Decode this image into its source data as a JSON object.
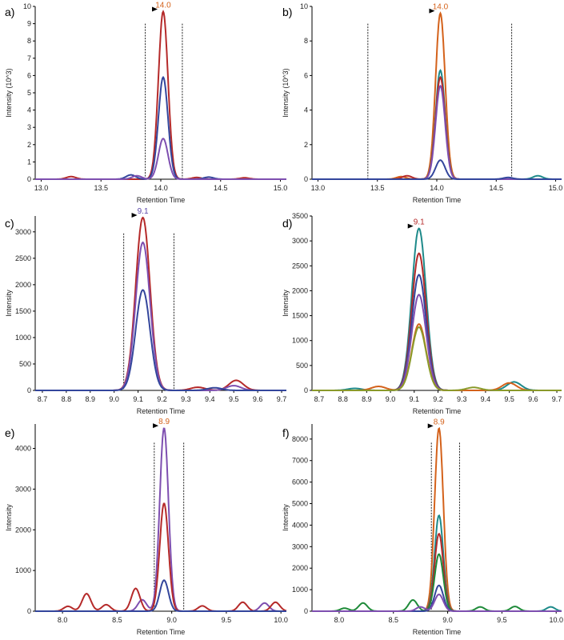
{
  "figure": {
    "panels": [
      {
        "label": "a)",
        "xlabel": "Retention Time",
        "ylabel": "Intensity (10^3)",
        "xlim": [
          12.95,
          15.05
        ],
        "ylim": [
          0,
          10
        ],
        "xticks": [
          "13.0",
          "13.5",
          "14.0",
          "14.5",
          "15.0"
        ],
        "yticks": [
          "0",
          "1",
          "2",
          "3",
          "4",
          "5",
          "6",
          "7",
          "8",
          "9",
          "10"
        ],
        "peak_label": "14.0",
        "peak_label_color": "#d4621b",
        "peak_rt": 14.02,
        "boundaries": [
          13.87,
          14.18
        ]
      },
      {
        "label": "b)",
        "xlabel": "Retention Time",
        "ylabel": "Intensity (10^3)",
        "xlim": [
          12.95,
          15.05
        ],
        "ylim": [
          0,
          10
        ],
        "xticks": [
          "13.0",
          "13.5",
          "14.0",
          "14.5",
          "15.0"
        ],
        "yticks": [
          "0",
          "2",
          "4",
          "6",
          "8",
          "10"
        ],
        "peak_label": "14.0",
        "peak_label_color": "#d4621b",
        "peak_rt": 14.03,
        "boundaries": [
          13.42,
          14.63
        ]
      },
      {
        "label": "c)",
        "xlabel": "Retention Time",
        "ylabel": "Intensity",
        "xlim": [
          8.67,
          9.72
        ],
        "ylim": [
          0,
          3300
        ],
        "xticks": [
          "8.7",
          "8.8",
          "8.9",
          "9.0",
          "9.1",
          "9.2",
          "9.3",
          "9.4",
          "9.5",
          "9.6",
          "9.7"
        ],
        "yticks": [
          "0",
          "500",
          "1000",
          "1500",
          "2000",
          "2500",
          "3000"
        ],
        "peak_label": "9.1",
        "peak_label_color": "#5a45a8",
        "peak_rt": 9.12,
        "boundaries": [
          9.04,
          9.25
        ]
      },
      {
        "label": "d)",
        "xlabel": "Retention Time",
        "ylabel": "Intensity",
        "xlim": [
          8.67,
          9.72
        ],
        "ylim": [
          0,
          3500
        ],
        "xticks": [
          "8.7",
          "8.8",
          "8.9",
          "9.0",
          "9.1",
          "9.2",
          "9.3",
          "9.4",
          "9.5",
          "9.6",
          "9.7"
        ],
        "yticks": [
          "0",
          "500",
          "1000",
          "1500",
          "2000",
          "2500",
          "3000",
          "3500"
        ],
        "peak_label": "9.1",
        "peak_label_color": "#b52a2a",
        "peak_rt": 9.12,
        "boundaries": []
      },
      {
        "label": "e)",
        "xlabel": "Retention Time",
        "ylabel": "Intensity",
        "xlim": [
          7.75,
          10.05
        ],
        "ylim": [
          0,
          4600
        ],
        "xticks": [
          "8.0",
          "8.5",
          "9.0",
          "9.5",
          "10.0"
        ],
        "yticks": [
          "0",
          "1000",
          "2000",
          "3000",
          "4000"
        ],
        "peak_label": "8.9",
        "peak_label_color": "#d4621b",
        "peak_rt": 8.93,
        "boundaries": [
          8.84,
          9.11
        ]
      },
      {
        "label": "f)",
        "xlabel": "Retention Time",
        "ylabel": "Intensity",
        "xlim": [
          7.75,
          10.05
        ],
        "ylim": [
          0,
          8700
        ],
        "xticks": [
          "8.0",
          "8.5",
          "9.0",
          "9.5",
          "10.0"
        ],
        "yticks": [
          "0",
          "1000",
          "2000",
          "3000",
          "4000",
          "5000",
          "6000",
          "7000",
          "8000"
        ],
        "peak_label": "8.9",
        "peak_label_color": "#d4621b",
        "peak_rt": 8.92,
        "boundaries": [
          8.85,
          9.11
        ]
      }
    ]
  },
  "chart_data": [
    {
      "type": "line",
      "panel": "a)",
      "x_unit": "min",
      "series": [
        {
          "color": "#b52a2a",
          "peaks": [
            {
              "rt": 14.02,
              "height": 9.7,
              "width": 0.04
            },
            {
              "rt": 13.25,
              "height": 0.15,
              "width": 0.04
            },
            {
              "rt": 14.3,
              "height": 0.1,
              "width": 0.04
            },
            {
              "rt": 14.7,
              "height": 0.08,
              "width": 0.04
            }
          ]
        },
        {
          "color": "#33469c",
          "peaks": [
            {
              "rt": 14.02,
              "height": 5.9,
              "width": 0.04
            },
            {
              "rt": 13.75,
              "height": 0.25,
              "width": 0.04
            },
            {
              "rt": 14.4,
              "height": 0.12,
              "width": 0.04
            }
          ]
        },
        {
          "color": "#7e4fb0",
          "peaks": [
            {
              "rt": 14.02,
              "height": 2.35,
              "width": 0.04
            },
            {
              "rt": 13.8,
              "height": 0.2,
              "width": 0.04
            }
          ]
        }
      ]
    },
    {
      "type": "line",
      "panel": "b)",
      "x_unit": "min",
      "series": [
        {
          "color": "#d4621b",
          "peaks": [
            {
              "rt": 14.03,
              "height": 9.6,
              "width": 0.04
            },
            {
              "rt": 13.7,
              "height": 0.15,
              "width": 0.04
            }
          ]
        },
        {
          "color": "#1e8a8a",
          "peaks": [
            {
              "rt": 14.03,
              "height": 6.3,
              "width": 0.04
            },
            {
              "rt": 14.85,
              "height": 0.2,
              "width": 0.04
            }
          ]
        },
        {
          "color": "#b52a2a",
          "peaks": [
            {
              "rt": 14.03,
              "height": 5.9,
              "width": 0.04
            },
            {
              "rt": 13.75,
              "height": 0.2,
              "width": 0.04
            }
          ]
        },
        {
          "color": "#7e4fb0",
          "peaks": [
            {
              "rt": 14.03,
              "height": 5.4,
              "width": 0.04
            }
          ]
        },
        {
          "color": "#33469c",
          "peaks": [
            {
              "rt": 14.03,
              "height": 1.1,
              "width": 0.04
            },
            {
              "rt": 14.6,
              "height": 0.1,
              "width": 0.04
            }
          ]
        }
      ]
    },
    {
      "type": "line",
      "panel": "c)",
      "x_unit": "min",
      "series": [
        {
          "color": "#b52a2a",
          "peaks": [
            {
              "rt": 9.12,
              "height": 3270,
              "width": 0.03
            },
            {
              "rt": 9.51,
              "height": 190,
              "width": 0.03
            },
            {
              "rt": 9.35,
              "height": 60,
              "width": 0.03
            }
          ]
        },
        {
          "color": "#7e4fb0",
          "peaks": [
            {
              "rt": 9.12,
              "height": 2800,
              "width": 0.03
            },
            {
              "rt": 9.5,
              "height": 90,
              "width": 0.03
            }
          ]
        },
        {
          "color": "#33469c",
          "peaks": [
            {
              "rt": 9.12,
              "height": 1900,
              "width": 0.03
            },
            {
              "rt": 9.42,
              "height": 50,
              "width": 0.03
            }
          ]
        }
      ]
    },
    {
      "type": "line",
      "panel": "d)",
      "x_unit": "min",
      "series": [
        {
          "color": "#1e8a8a",
          "peaks": [
            {
              "rt": 9.12,
              "height": 3250,
              "width": 0.03
            },
            {
              "rt": 9.52,
              "height": 170,
              "width": 0.03
            },
            {
              "rt": 8.85,
              "height": 40,
              "width": 0.03
            }
          ]
        },
        {
          "color": "#b52a2a",
          "peaks": [
            {
              "rt": 9.12,
              "height": 2750,
              "width": 0.03
            }
          ]
        },
        {
          "color": "#33469c",
          "peaks": [
            {
              "rt": 9.12,
              "height": 2320,
              "width": 0.03
            }
          ]
        },
        {
          "color": "#7e4fb0",
          "peaks": [
            {
              "rt": 9.12,
              "height": 1920,
              "width": 0.03
            }
          ]
        },
        {
          "color": "#d4621b",
          "peaks": [
            {
              "rt": 9.12,
              "height": 1330,
              "width": 0.03
            },
            {
              "rt": 8.95,
              "height": 80,
              "width": 0.03
            },
            {
              "rt": 9.5,
              "height": 150,
              "width": 0.03
            }
          ]
        },
        {
          "color": "#8a9a2a",
          "peaks": [
            {
              "rt": 9.12,
              "height": 1270,
              "width": 0.03
            },
            {
              "rt": 9.35,
              "height": 60,
              "width": 0.03
            }
          ]
        }
      ]
    },
    {
      "type": "line",
      "panel": "e)",
      "x_unit": "min",
      "series": [
        {
          "color": "#7e4fb0",
          "peaks": [
            {
              "rt": 8.93,
              "height": 4500,
              "width": 0.04
            },
            {
              "rt": 8.73,
              "height": 280,
              "width": 0.04
            },
            {
              "rt": 9.85,
              "height": 200,
              "width": 0.04
            }
          ]
        },
        {
          "color": "#b52a2a",
          "peaks": [
            {
              "rt": 8.93,
              "height": 2650,
              "width": 0.04
            },
            {
              "rt": 8.22,
              "height": 430,
              "width": 0.04
            },
            {
              "rt": 8.67,
              "height": 560,
              "width": 0.04
            },
            {
              "rt": 8.05,
              "height": 120,
              "width": 0.04
            },
            {
              "rt": 8.4,
              "height": 160,
              "width": 0.04
            },
            {
              "rt": 9.28,
              "height": 130,
              "width": 0.04
            },
            {
              "rt": 9.65,
              "height": 220,
              "width": 0.04
            },
            {
              "rt": 9.95,
              "height": 220,
              "width": 0.04
            }
          ]
        },
        {
          "color": "#33469c",
          "peaks": [
            {
              "rt": 8.93,
              "height": 760,
              "width": 0.04
            }
          ]
        }
      ]
    },
    {
      "type": "line",
      "panel": "f)",
      "x_unit": "min",
      "series": [
        {
          "color": "#d4621b",
          "peaks": [
            {
              "rt": 8.92,
              "height": 8500,
              "width": 0.04
            }
          ]
        },
        {
          "color": "#1e8a8a",
          "peaks": [
            {
              "rt": 8.92,
              "height": 4450,
              "width": 0.04
            },
            {
              "rt": 9.95,
              "height": 200,
              "width": 0.04
            }
          ]
        },
        {
          "color": "#b52a2a",
          "peaks": [
            {
              "rt": 8.92,
              "height": 3600,
              "width": 0.04
            }
          ]
        },
        {
          "color": "#1f8a3a",
          "peaks": [
            {
              "rt": 8.92,
              "height": 2650,
              "width": 0.04
            },
            {
              "rt": 8.22,
              "height": 380,
              "width": 0.04
            },
            {
              "rt": 8.68,
              "height": 520,
              "width": 0.04
            },
            {
              "rt": 8.05,
              "height": 140,
              "width": 0.04
            },
            {
              "rt": 9.3,
              "height": 200,
              "width": 0.04
            },
            {
              "rt": 9.62,
              "height": 220,
              "width": 0.04
            }
          ]
        },
        {
          "color": "#33469c",
          "peaks": [
            {
              "rt": 8.92,
              "height": 1200,
              "width": 0.04
            }
          ]
        },
        {
          "color": "#7e4fb0",
          "peaks": [
            {
              "rt": 8.92,
              "height": 780,
              "width": 0.04
            },
            {
              "rt": 8.75,
              "height": 200,
              "width": 0.04
            }
          ]
        }
      ]
    }
  ]
}
